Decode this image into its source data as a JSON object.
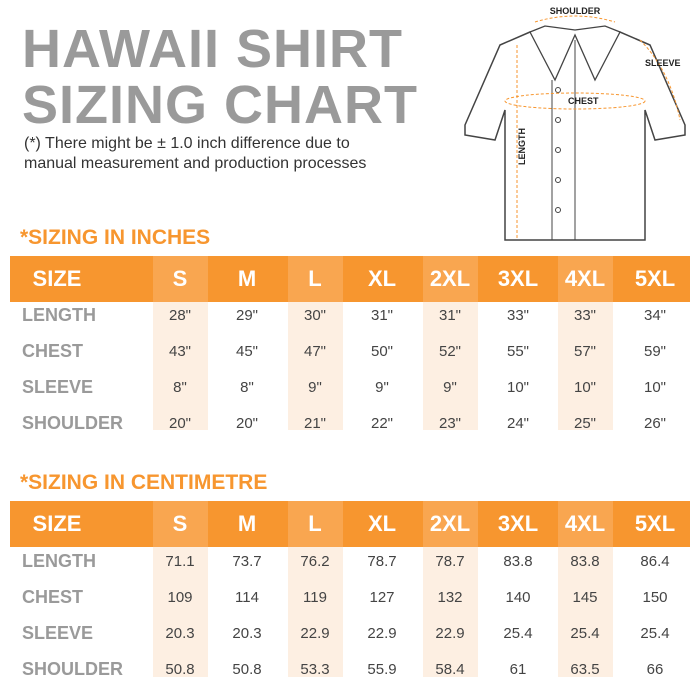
{
  "title": {
    "line1": "HAWAII SHIRT",
    "line2": "SIZING CHART"
  },
  "note": {
    "line1": "(*) There might be ± 1.0 inch difference due to",
    "line2": "manual measurement and production processes"
  },
  "diagram": {
    "shoulder": "SHOULDER",
    "sleeve": "SLEEVE",
    "chest": "CHEST",
    "length": "LENGTH"
  },
  "colors": {
    "accent": "#f7962f",
    "highlight": "#fdefe2",
    "label": "#9a9a9a"
  },
  "inches": {
    "heading": "*SIZING IN INCHES",
    "size_label": "SIZE",
    "sizes": [
      "S",
      "M",
      "L",
      "XL",
      "2XL",
      "3XL",
      "4XL",
      "5XL"
    ],
    "rows": [
      {
        "label": "LENGTH",
        "values": [
          "28\"",
          "29\"",
          "30\"",
          "31\"",
          "31\"",
          "33\"",
          "33\"",
          "34\""
        ]
      },
      {
        "label": "CHEST",
        "values": [
          "43\"",
          "45\"",
          "47\"",
          "50\"",
          "52\"",
          "55\"",
          "57\"",
          "59\""
        ]
      },
      {
        "label": "SLEEVE",
        "values": [
          "8\"",
          "8\"",
          "9\"",
          "9\"",
          "9\"",
          "10\"",
          "10\"",
          "10\""
        ]
      },
      {
        "label": "SHOULDER",
        "values": [
          "20\"",
          "20\"",
          "21\"",
          "22\"",
          "23\"",
          "24\"",
          "25\"",
          "26\""
        ]
      }
    ]
  },
  "cm": {
    "heading": "*SIZING IN CENTIMETRE",
    "size_label": "SIZE",
    "sizes": [
      "S",
      "M",
      "L",
      "XL",
      "2XL",
      "3XL",
      "4XL",
      "5XL"
    ],
    "rows": [
      {
        "label": "LENGTH",
        "values": [
          "71.1",
          "73.7",
          "76.2",
          "78.7",
          "78.7",
          "83.8",
          "83.8",
          "86.4"
        ]
      },
      {
        "label": "CHEST",
        "values": [
          "109",
          "114",
          "119",
          "127",
          "132",
          "140",
          "145",
          "150"
        ]
      },
      {
        "label": "SLEEVE",
        "values": [
          "20.3",
          "20.3",
          "22.9",
          "22.9",
          "22.9",
          "25.4",
          "25.4",
          "25.4"
        ]
      },
      {
        "label": "SHOULDER",
        "values": [
          "50.8",
          "50.8",
          "53.3",
          "55.9",
          "58.4",
          "61",
          "63.5",
          "66"
        ]
      }
    ]
  }
}
